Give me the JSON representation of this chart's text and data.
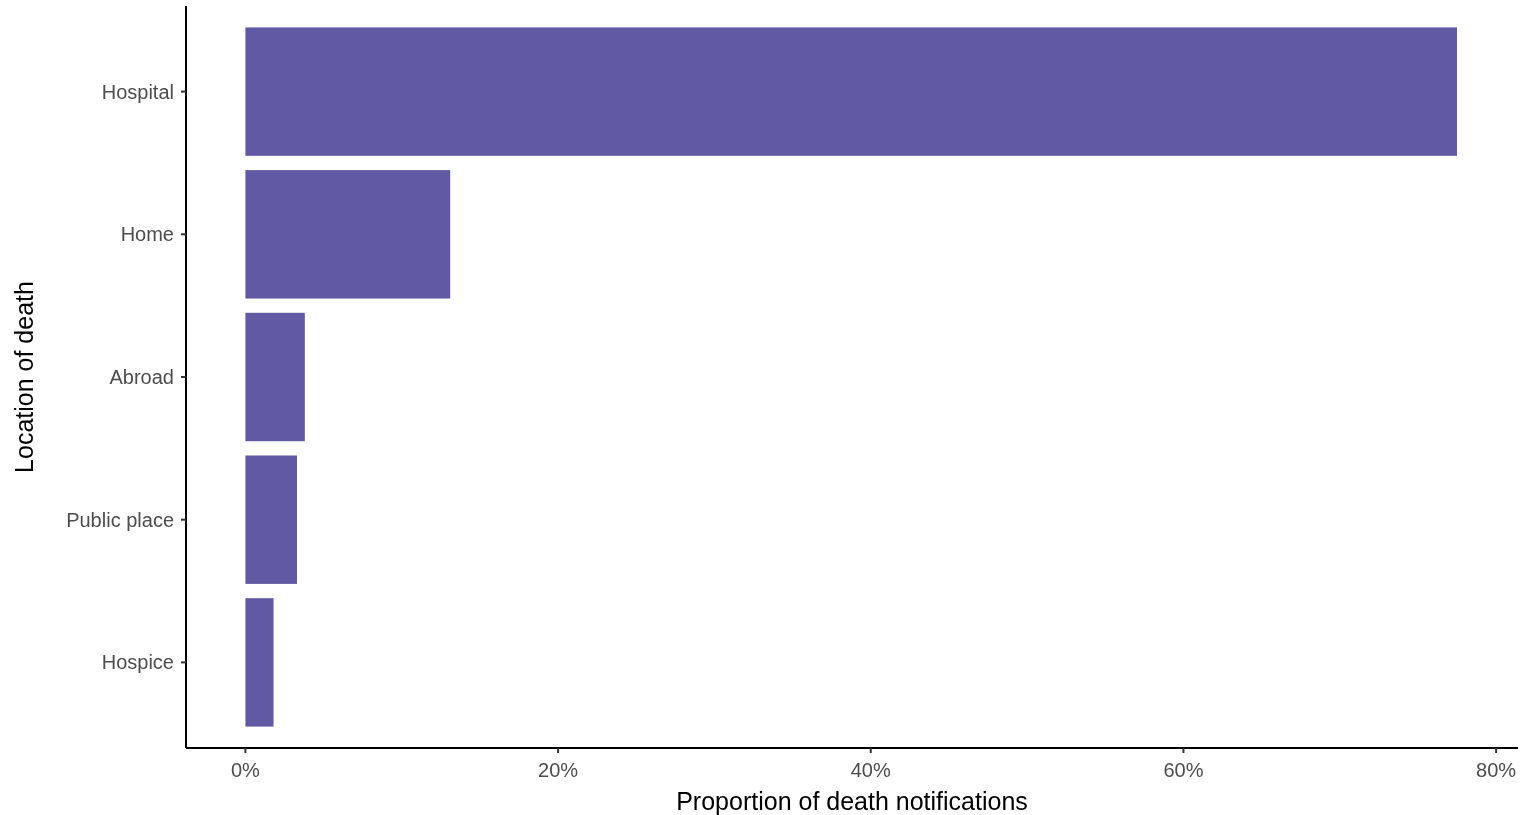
{
  "chart_data": {
    "type": "bar",
    "orientation": "horizontal",
    "xlabel": "Proportion of death notifications",
    "ylabel": "Location of death",
    "categories": [
      "Hospital",
      "Home",
      "Abroad",
      "Public place",
      "Hospice"
    ],
    "values": [
      77.5,
      13.1,
      3.8,
      3.3,
      1.8
    ],
    "color": "#6159a3",
    "xlim": [
      -3.8,
      81.4
    ],
    "xticks": [
      {
        "value": 0,
        "label": "0%"
      },
      {
        "value": 20,
        "label": "20%"
      },
      {
        "value": 40,
        "label": "40%"
      },
      {
        "value": 60,
        "label": "60%"
      },
      {
        "value": 80,
        "label": "80%"
      }
    ],
    "grid": false
  }
}
